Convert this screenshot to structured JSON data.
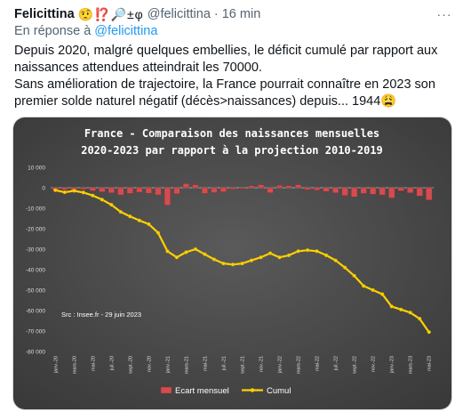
{
  "tweet": {
    "author_name": "Felicittina",
    "author_emojis": "🤨⁉️🔎±φ",
    "handle": "@felicittina",
    "separator": "·",
    "time": "16 min",
    "more_label": "···",
    "reply_prefix": "En réponse à",
    "reply_handle": "@felicittina",
    "lines": [
      "Depuis 2020, malgré quelques embellies, le déficit cumulé par rapport aux",
      "naissances attendues atteindrait les 70000.",
      "Sans amélioration de trajectoire, la France pourrait connaître en 2023 son",
      "premier solde naturel négatif (décès>naissances) depuis... 1944😩"
    ]
  },
  "colors": {
    "bar": "#d24d50",
    "line": "#ffd200",
    "chart_bg_center": "#5a5a5a",
    "chart_bg_edge": "#3a3a3a"
  },
  "chart_data": {
    "type": "bar",
    "title": "France - Comparaison des naissances mensuelles",
    "subtitle": "2020-2023 par rapport à la projection 2010-2019",
    "source": "Src : Insee.fr - 29 juin 2023",
    "ylim": [
      -80000,
      10000
    ],
    "y_ticks": [
      10000,
      0,
      -10000,
      -20000,
      -30000,
      -40000,
      -50000,
      -60000,
      -70000,
      -80000
    ],
    "y_tick_labels": [
      "10 000",
      "0",
      "-10 000",
      "-20 000",
      "-30 000",
      "-40 000",
      "-50 000",
      "-60 000",
      "-70 000",
      "-80 000"
    ],
    "categories": [
      "janv.-20",
      "févr.-20",
      "mars-20",
      "avr.-20",
      "mai-20",
      "juin-20",
      "juil.-20",
      "août-20",
      "sept.-20",
      "oct.-20",
      "nov.-20",
      "déc.-20",
      "janv.-21",
      "févr.-21",
      "mars-21",
      "avr.-21",
      "mai-21",
      "juin-21",
      "juil.-21",
      "août-21",
      "sept.-21",
      "oct.-21",
      "nov.-21",
      "déc.-21",
      "janv.-22",
      "févr.-22",
      "mars-22",
      "avr.-22",
      "mai-22",
      "juin-22",
      "juil.-22",
      "août-22",
      "sept.-22",
      "oct.-22",
      "nov.-22",
      "déc.-22",
      "janv.-23",
      "févr.-23",
      "mars-23",
      "avr.-23",
      "mai-23"
    ],
    "x_tick_labels": [
      "janv.-20",
      "mars-20",
      "mai-20",
      "juil.-20",
      "sept.-20",
      "nov.-20",
      "janv.-21",
      "mars-21",
      "mai-21",
      "juil.-21",
      "sept.-21",
      "nov.-21",
      "janv.-22",
      "mars-22",
      "mai-22",
      "juil.-22",
      "sept.-22",
      "nov.-22",
      "janv.-23",
      "mars-23",
      "mai-23"
    ],
    "series": [
      {
        "name": "Ecart mensuel",
        "type": "bar",
        "values": [
          -1200,
          -1000,
          -1800,
          -800,
          -1500,
          -2000,
          -2500,
          -3500,
          -2800,
          -2200,
          -2700,
          -3500,
          -8500,
          -3000,
          2000,
          1500,
          -2800,
          -2400,
          -2000,
          -800,
          -500,
          1000,
          1500,
          -2500,
          1200,
          1000,
          1500,
          -1000,
          -1200,
          -1800,
          -2500,
          -3800,
          -4500,
          -2800,
          -3200,
          -3500,
          -5000,
          -1500,
          -2500,
          -4000,
          -6000
        ]
      },
      {
        "name": "Cumul",
        "type": "line",
        "values": [
          -1200,
          -2200,
          -1500,
          -2300,
          -3800,
          -5800,
          -8300,
          -11800,
          -14000,
          -16000,
          -17800,
          -22000,
          -31000,
          -34000,
          -31500,
          -30000,
          -32500,
          -35000,
          -37000,
          -37500,
          -37000,
          -35500,
          -34000,
          -32000,
          -34000,
          -33000,
          -31000,
          -30500,
          -31000,
          -33000,
          -35500,
          -39000,
          -43000,
          -48000,
          -50000,
          -52000,
          -58000,
          -59500,
          -61000,
          -64000,
          -70500
        ]
      }
    ],
    "legend": [
      "Ecart mensuel",
      "Cumul"
    ],
    "legend_position": "bottom",
    "grid": false
  }
}
